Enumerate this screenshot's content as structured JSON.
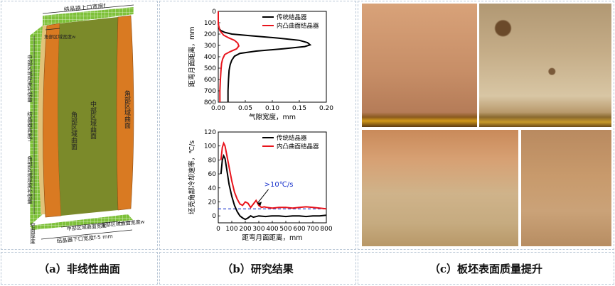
{
  "panel_a": {
    "caption": "（a）非线性曲面",
    "labels": {
      "top_width": "结晶器上口宽度f",
      "corner_width": "角部区域宽度w",
      "corner_surface_left": "角部区域曲面",
      "middle_surface": "中部区域曲面",
      "corner_surface_right": "角部区域曲面",
      "mid_thickness_comp": "中部区域厚度补偿量",
      "mold_height": "结晶器高度h",
      "corner_thickness_comp": "角部区域厚度补偿量",
      "side_thickness": "窄面厚度",
      "mid_width_bottom": "中部区域曲面宽度",
      "corner_width_bottom": "角部区域曲面宽度w",
      "bottom_width": "结晶器下口宽度f-5 mm"
    }
  },
  "panel_b": {
    "caption": "（b）研究结果"
  },
  "panel_c": {
    "caption": "（c）板坯表面质量提升"
  },
  "chart_data": [
    {
      "type": "line",
      "ylabel": "距弯月面距离，mm",
      "xlabel": "气隙宽度，mm",
      "xlim": [
        0,
        0.2
      ],
      "ylim": [
        0,
        800
      ],
      "y_inverted": true,
      "xticks": [
        "0.00",
        "0.05",
        "0.10",
        "0.15",
        "0.20"
      ],
      "yticks": [
        "0",
        "100",
        "200",
        "300",
        "400",
        "500",
        "600",
        "700",
        "800"
      ],
      "legend_position": "top-right",
      "series": [
        {
          "name": "传统结晶器",
          "color": "#000000",
          "points": [
            [
              0.0,
              0
            ],
            [
              0.0,
              100
            ],
            [
              0.001,
              150
            ],
            [
              0.005,
              170
            ],
            [
              0.012,
              185
            ],
            [
              0.025,
              200
            ],
            [
              0.06,
              215
            ],
            [
              0.11,
              235
            ],
            [
              0.15,
              255
            ],
            [
              0.165,
              275
            ],
            [
              0.17,
              295
            ],
            [
              0.16,
              310
            ],
            [
              0.12,
              330
            ],
            [
              0.07,
              350
            ],
            [
              0.04,
              370
            ],
            [
              0.03,
              395
            ],
            [
              0.025,
              430
            ],
            [
              0.022,
              470
            ],
            [
              0.02,
              520
            ],
            [
              0.019,
              600
            ],
            [
              0.018,
              700
            ],
            [
              0.018,
              800
            ]
          ]
        },
        {
          "name": "内凸曲面结晶器",
          "color": "#e8141c",
          "points": [
            [
              0.0,
              0
            ],
            [
              0.0,
              110
            ],
            [
              0.003,
              170
            ],
            [
              0.01,
              210
            ],
            [
              0.02,
              235
            ],
            [
              0.03,
              255
            ],
            [
              0.036,
              280
            ],
            [
              0.038,
              305
            ],
            [
              0.034,
              330
            ],
            [
              0.022,
              355
            ],
            [
              0.012,
              380
            ],
            [
              0.008,
              420
            ],
            [
              0.006,
              460
            ],
            [
              0.005,
              520
            ],
            [
              0.004,
              600
            ],
            [
              0.003,
              700
            ],
            [
              0.003,
              800
            ]
          ]
        }
      ]
    },
    {
      "type": "line",
      "ylabel": "坯壳角部冷却速率，℃/s",
      "xlabel": "距弯月面距离，mm",
      "xlim": [
        0,
        800
      ],
      "ylim": [
        -10,
        120
      ],
      "xticks": [
        "0",
        "100",
        "200",
        "300",
        "400",
        "500",
        "600",
        "700",
        "800"
      ],
      "yticks": [
        "0",
        "20",
        "40",
        "60",
        "80",
        "100",
        "120"
      ],
      "legend_position": "top-right",
      "annotation": ">10℃/s",
      "reference_line": 10,
      "series": [
        {
          "name": "传统结晶器",
          "color": "#000000",
          "points": [
            [
              20,
              60
            ],
            [
              30,
              80
            ],
            [
              40,
              86
            ],
            [
              50,
              82
            ],
            [
              60,
              70
            ],
            [
              80,
              45
            ],
            [
              100,
              28
            ],
            [
              120,
              15
            ],
            [
              140,
              6
            ],
            [
              160,
              0
            ],
            [
              180,
              -3
            ],
            [
              200,
              -5
            ],
            [
              220,
              -3
            ],
            [
              240,
              0
            ],
            [
              260,
              -2
            ],
            [
              300,
              0
            ],
            [
              350,
              -1
            ],
            [
              400,
              0
            ],
            [
              450,
              0
            ],
            [
              500,
              -1
            ],
            [
              550,
              0
            ],
            [
              600,
              0
            ],
            [
              650,
              -1
            ],
            [
              700,
              0
            ],
            [
              750,
              0
            ],
            [
              800,
              1
            ]
          ]
        },
        {
          "name": "内凸曲面结晶器",
          "color": "#e8141c",
          "points": [
            [
              20,
              80
            ],
            [
              30,
              98
            ],
            [
              40,
              104
            ],
            [
              50,
              100
            ],
            [
              60,
              90
            ],
            [
              80,
              70
            ],
            [
              100,
              50
            ],
            [
              120,
              34
            ],
            [
              140,
              24
            ],
            [
              160,
              17
            ],
            [
              180,
              15
            ],
            [
              200,
              20
            ],
            [
              220,
              18
            ],
            [
              240,
              12
            ],
            [
              260,
              17
            ],
            [
              280,
              22
            ],
            [
              300,
              15
            ],
            [
              320,
              12
            ],
            [
              340,
              13
            ],
            [
              360,
              12
            ],
            [
              400,
              11
            ],
            [
              450,
              12
            ],
            [
              500,
              12
            ],
            [
              550,
              11
            ],
            [
              600,
              12
            ],
            [
              650,
              13
            ],
            [
              700,
              12
            ],
            [
              750,
              11
            ],
            [
              800,
              10
            ]
          ]
        }
      ]
    }
  ]
}
